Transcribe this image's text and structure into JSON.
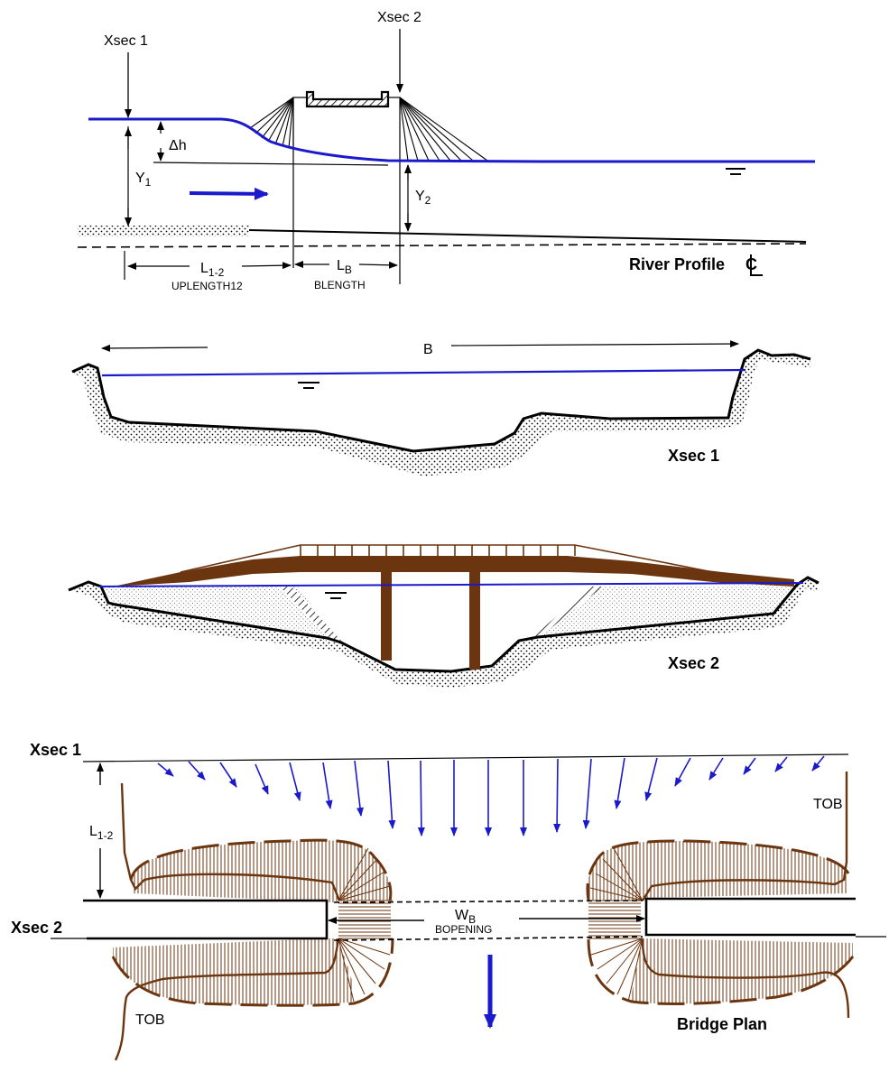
{
  "colors": {
    "water": "#1a1acc",
    "bridge": "#6b3510",
    "ground": "#000000",
    "arrow": "#1a1acc"
  },
  "profile": {
    "xsec1": "Xsec 1",
    "xsec2": "Xsec 2",
    "dh": "Δh",
    "y1_main": "Y",
    "y1_sub": "1",
    "y2_main": "Y",
    "y2_sub": "2",
    "l12_main": "L",
    "l12_sub": "1-2",
    "uplength": "UPLENGTH12",
    "lb_main": "L",
    "lb_sub": "B",
    "blength": "BLENGTH",
    "title": "River Profile",
    "centerline_symbol": "C"
  },
  "xsec1_section": {
    "b_label": "B",
    "title": "Xsec 1"
  },
  "xsec2_section": {
    "title": "Xsec 2"
  },
  "plan": {
    "xsec1": "Xsec 1",
    "xsec2": "Xsec 2",
    "l12_main": "L",
    "l12_sub": "1-2",
    "wb_main": "W",
    "wb_sub": "B",
    "bopening": "BOPENING",
    "tob_right": "TOB",
    "tob_left": "TOB",
    "title": "Bridge Plan"
  }
}
